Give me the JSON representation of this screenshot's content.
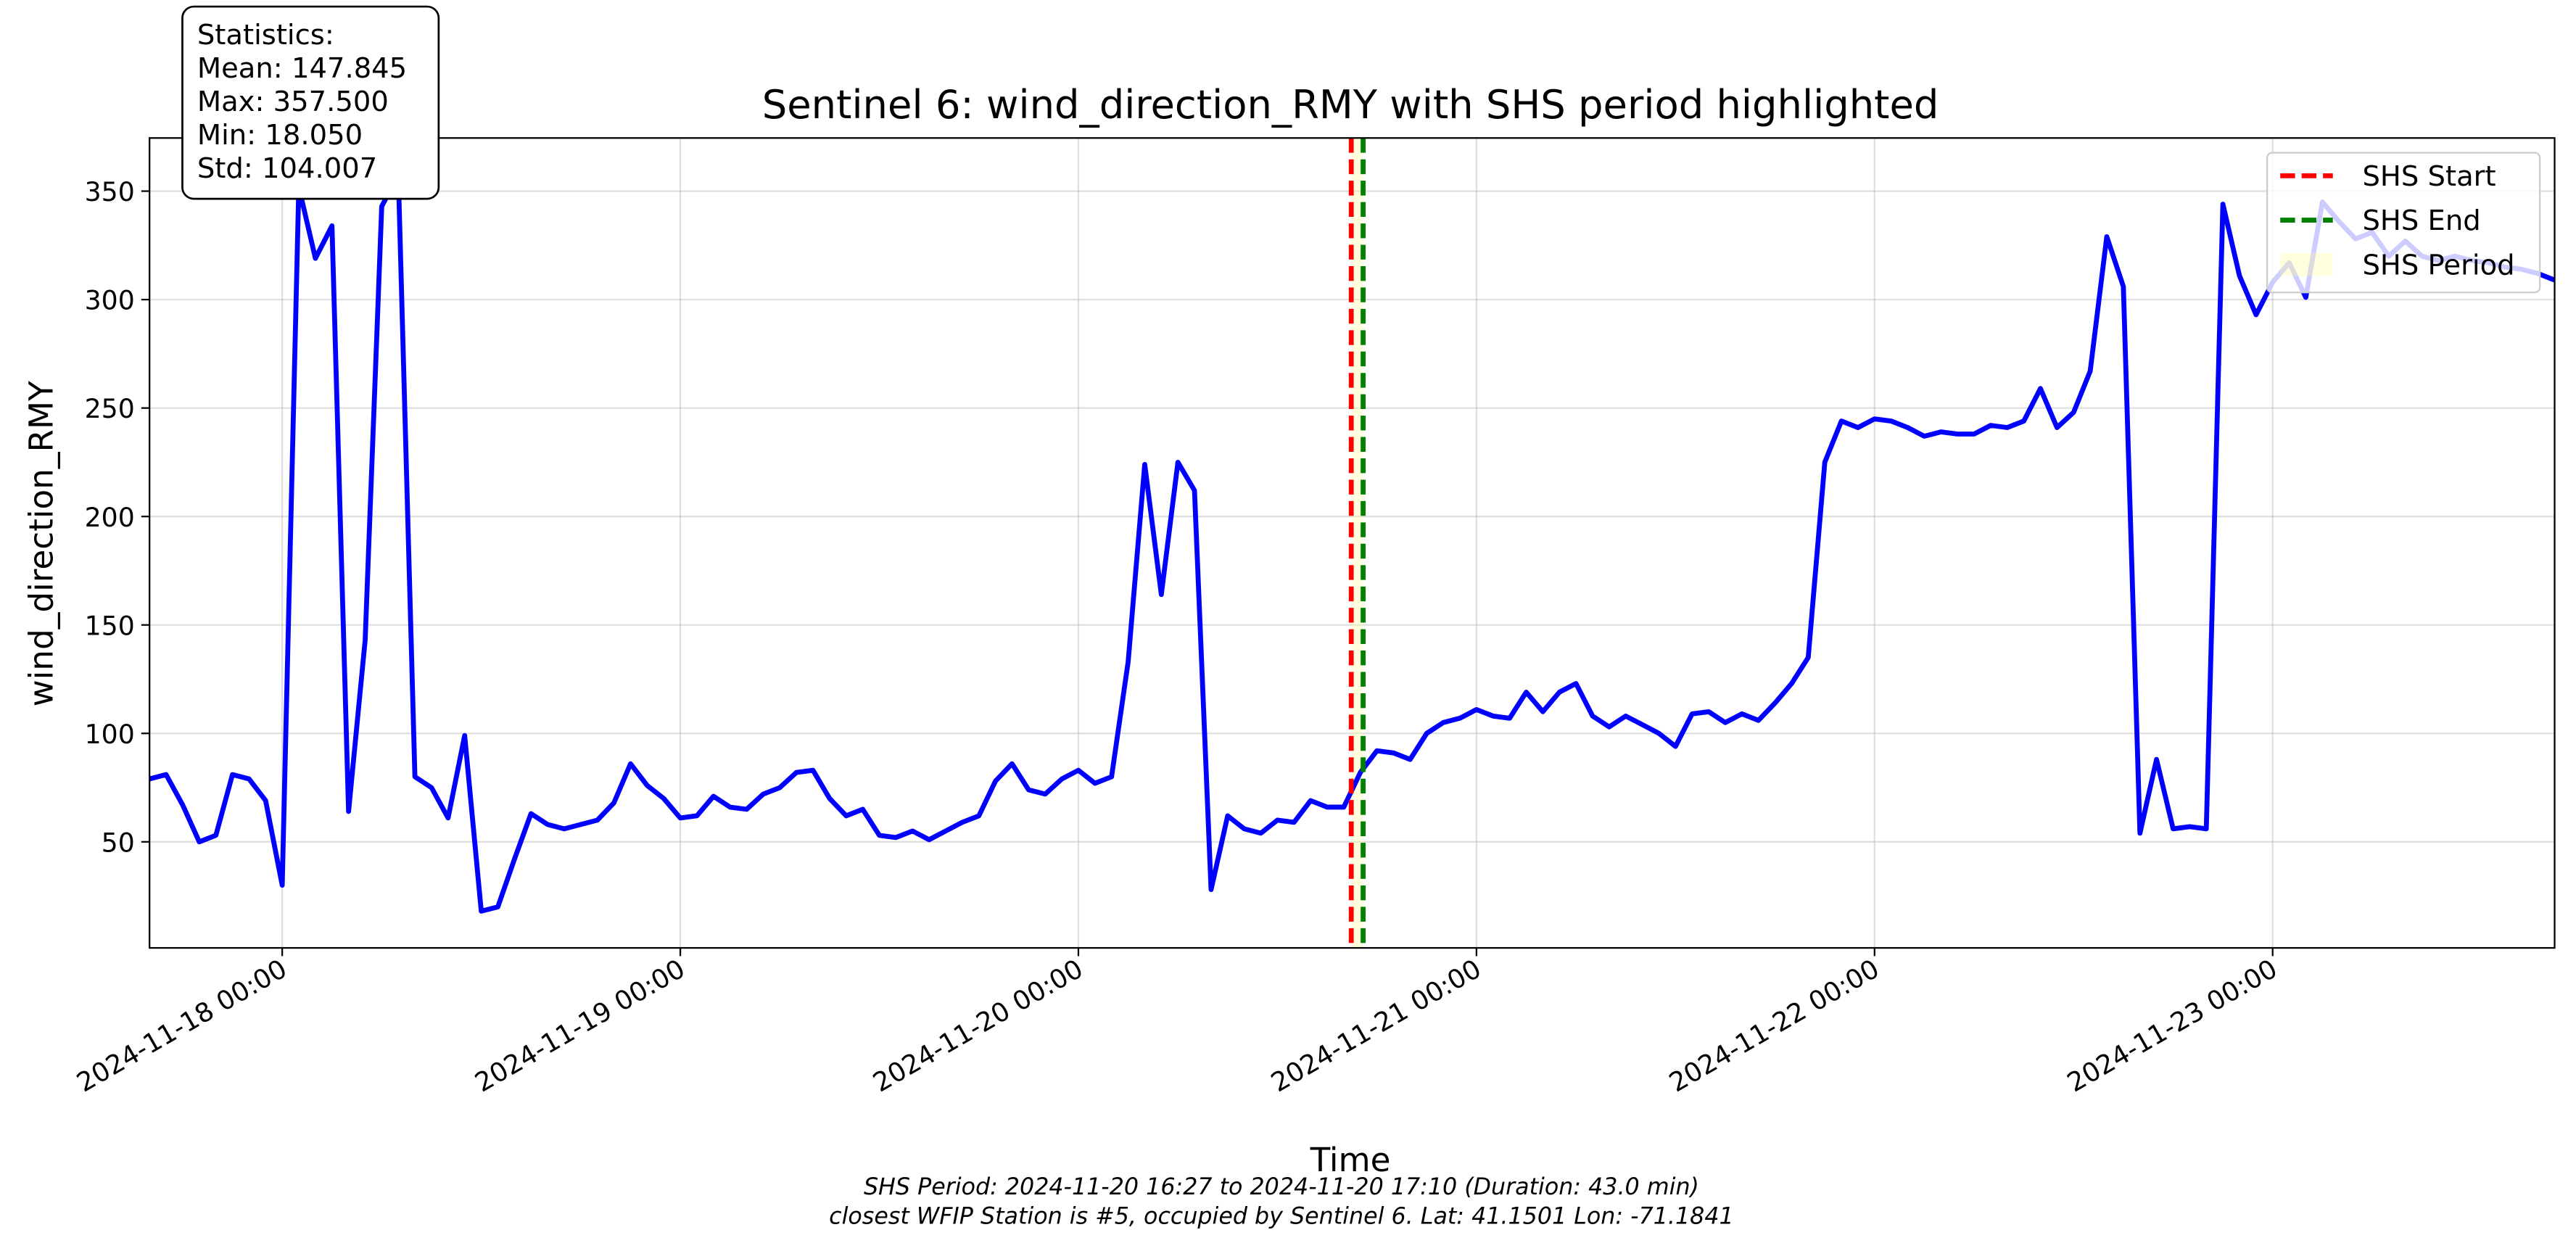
{
  "chart_data": {
    "type": "line",
    "title": "Sentinel 6: wind_direction_RMY with SHS period highlighted",
    "x_label": "Time",
    "y_label": "wind_direction_RMY",
    "x": [
      "2024-11-17 16:00",
      "2024-11-17 17:00",
      "2024-11-17 18:00",
      "2024-11-17 19:00",
      "2024-11-17 20:00",
      "2024-11-17 21:00",
      "2024-11-17 22:00",
      "2024-11-17 23:00",
      "2024-11-18 00:00",
      "2024-11-18 01:00",
      "2024-11-18 02:00",
      "2024-11-18 03:00",
      "2024-11-18 04:00",
      "2024-11-18 05:00",
      "2024-11-18 06:00",
      "2024-11-18 07:00",
      "2024-11-18 08:00",
      "2024-11-18 09:00",
      "2024-11-18 10:00",
      "2024-11-18 11:00",
      "2024-11-18 12:00",
      "2024-11-18 13:00",
      "2024-11-18 14:00",
      "2024-11-18 15:00",
      "2024-11-18 16:00",
      "2024-11-18 17:00",
      "2024-11-18 18:00",
      "2024-11-18 19:00",
      "2024-11-18 20:00",
      "2024-11-18 21:00",
      "2024-11-18 22:00",
      "2024-11-18 23:00",
      "2024-11-19 00:00",
      "2024-11-19 01:00",
      "2024-11-19 02:00",
      "2024-11-19 03:00",
      "2024-11-19 04:00",
      "2024-11-19 05:00",
      "2024-11-19 06:00",
      "2024-11-19 07:00",
      "2024-11-19 08:00",
      "2024-11-19 09:00",
      "2024-11-19 10:00",
      "2024-11-19 11:00",
      "2024-11-19 12:00",
      "2024-11-19 13:00",
      "2024-11-19 14:00",
      "2024-11-19 15:00",
      "2024-11-19 16:00",
      "2024-11-19 17:00",
      "2024-11-19 18:00",
      "2024-11-19 19:00",
      "2024-11-19 20:00",
      "2024-11-19 21:00",
      "2024-11-19 22:00",
      "2024-11-19 23:00",
      "2024-11-20 00:00",
      "2024-11-20 01:00",
      "2024-11-20 02:00",
      "2024-11-20 03:00",
      "2024-11-20 04:00",
      "2024-11-20 05:00",
      "2024-11-20 06:00",
      "2024-11-20 07:00",
      "2024-11-20 08:00",
      "2024-11-20 09:00",
      "2024-11-20 10:00",
      "2024-11-20 11:00",
      "2024-11-20 12:00",
      "2024-11-20 13:00",
      "2024-11-20 14:00",
      "2024-11-20 15:00",
      "2024-11-20 16:00",
      "2024-11-20 17:00",
      "2024-11-20 18:00",
      "2024-11-20 19:00",
      "2024-11-20 20:00",
      "2024-11-20 21:00",
      "2024-11-20 22:00",
      "2024-11-20 23:00",
      "2024-11-21 00:00",
      "2024-11-21 01:00",
      "2024-11-21 02:00",
      "2024-11-21 03:00",
      "2024-11-21 04:00",
      "2024-11-21 05:00",
      "2024-11-21 06:00",
      "2024-11-21 07:00",
      "2024-11-21 08:00",
      "2024-11-21 09:00",
      "2024-11-21 10:00",
      "2024-11-21 11:00",
      "2024-11-21 12:00",
      "2024-11-21 13:00",
      "2024-11-21 14:00",
      "2024-11-21 15:00",
      "2024-11-21 16:00",
      "2024-11-21 17:00",
      "2024-11-21 18:00",
      "2024-11-21 19:00",
      "2024-11-21 20:00",
      "2024-11-21 21:00",
      "2024-11-21 22:00",
      "2024-11-21 23:00",
      "2024-11-22 00:00",
      "2024-11-22 01:00",
      "2024-11-22 02:00",
      "2024-11-22 03:00",
      "2024-11-22 04:00",
      "2024-11-22 05:00",
      "2024-11-22 06:00",
      "2024-11-22 07:00",
      "2024-11-22 08:00",
      "2024-11-22 09:00",
      "2024-11-22 10:00",
      "2024-11-22 11:00",
      "2024-11-22 12:00",
      "2024-11-22 13:00",
      "2024-11-22 14:00",
      "2024-11-22 15:00",
      "2024-11-22 16:00",
      "2024-11-22 17:00",
      "2024-11-22 18:00",
      "2024-11-22 19:00",
      "2024-11-22 20:00",
      "2024-11-22 21:00",
      "2024-11-22 22:00",
      "2024-11-22 23:00",
      "2024-11-23 00:00",
      "2024-11-23 01:00",
      "2024-11-23 02:00",
      "2024-11-23 03:00",
      "2024-11-23 04:00",
      "2024-11-23 05:00",
      "2024-11-23 06:00",
      "2024-11-23 07:00",
      "2024-11-23 08:00",
      "2024-11-23 09:00",
      "2024-11-23 10:00",
      "2024-11-23 11:00",
      "2024-11-23 12:00",
      "2024-11-23 13:00",
      "2024-11-23 14:00",
      "2024-11-23 15:00",
      "2024-11-23 16:00",
      "2024-11-23 17:00"
    ],
    "values": [
      79,
      81,
      67,
      50,
      53,
      81,
      79,
      69,
      30,
      352,
      319,
      334,
      64,
      143,
      343,
      357.5,
      80,
      75,
      61,
      99,
      18.05,
      20,
      42,
      63,
      58,
      56,
      58,
      60,
      68,
      86,
      76,
      70,
      61,
      62,
      71,
      66,
      65,
      72,
      75,
      82,
      83,
      70,
      62,
      65,
      53,
      52,
      55,
      51,
      55,
      59,
      62,
      78,
      86,
      74,
      72,
      79,
      83,
      77,
      80,
      133,
      224,
      164,
      225,
      212,
      28,
      62,
      56,
      54,
      60,
      59,
      69,
      66,
      66,
      82,
      92,
      91,
      88,
      100,
      105,
      107,
      111,
      108,
      107,
      119,
      110,
      119,
      123,
      108,
      103,
      108,
      104,
      100,
      94,
      109,
      110,
      105,
      109,
      106,
      114,
      123,
      135,
      225,
      244,
      241,
      245,
      244,
      241,
      237,
      239,
      238,
      238,
      242,
      241,
      244,
      259,
      241,
      248,
      267,
      329,
      306,
      54,
      88,
      56,
      57,
      56,
      344,
      311,
      293,
      308,
      317,
      301,
      345,
      336,
      328,
      331,
      320,
      327,
      320,
      318,
      320,
      318,
      317,
      315,
      314,
      312,
      309
    ],
    "color": "#0000ff",
    "xlim": [
      "2024-11-17 16:00",
      "2024-11-23 17:00"
    ],
    "xticks": [
      "2024-11-18 00:00",
      "2024-11-19 00:00",
      "2024-11-20 00:00",
      "2024-11-21 00:00",
      "2024-11-22 00:00",
      "2024-11-23 00:00"
    ],
    "ylim": [
      1.1,
      374.5
    ],
    "yticks": [
      50,
      100,
      150,
      200,
      250,
      300,
      350
    ],
    "grid": true,
    "markers": [
      {
        "label": "SHS Start",
        "x": "2024-11-20 16:27",
        "color": "#ff0000"
      },
      {
        "label": "SHS End",
        "x": "2024-11-20 17:10",
        "color": "#008000"
      }
    ],
    "span": {
      "label": "SHS Period",
      "x0": "2024-11-20 16:27",
      "x1": "2024-11-20 17:10",
      "color": "#ffff99"
    },
    "legend": "upper right",
    "stats_box": [
      "Statistics:",
      "Mean: 147.845",
      "Max: 357.500",
      "Min: 18.050",
      "Std: 104.007"
    ],
    "caption": [
      "SHS Period: 2024-11-20 16:27 to 2024-11-20 17:10 (Duration: 43.0 min)",
      "closest WFIP Station is #5, occupied by Sentinel 6. Lat: 41.1501 Lon: -71.1841"
    ]
  }
}
